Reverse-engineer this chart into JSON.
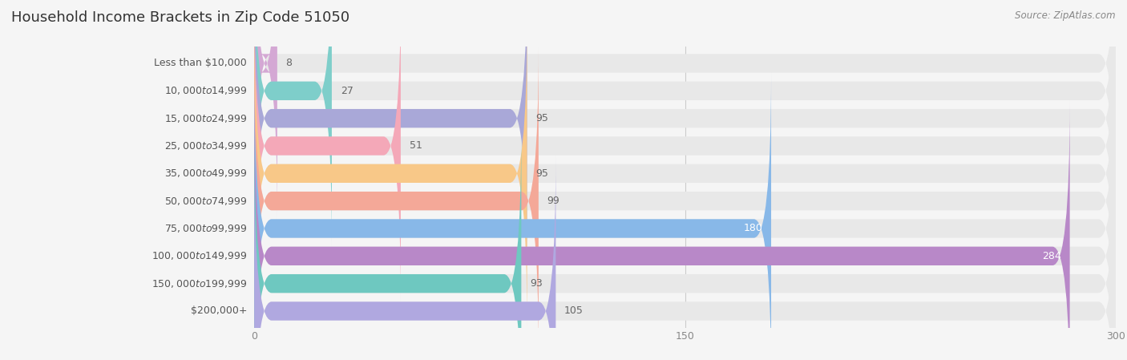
{
  "title": "Household Income Brackets in Zip Code 51050",
  "source_text": "Source: ZipAtlas.com",
  "categories": [
    "Less than $10,000",
    "$10,000 to $14,999",
    "$15,000 to $24,999",
    "$25,000 to $34,999",
    "$35,000 to $49,999",
    "$50,000 to $74,999",
    "$75,000 to $99,999",
    "$100,000 to $149,999",
    "$150,000 to $199,999",
    "$200,000+"
  ],
  "values": [
    8,
    27,
    95,
    51,
    95,
    99,
    180,
    284,
    93,
    105
  ],
  "bar_colors": [
    "#d4a8d4",
    "#7ececa",
    "#a9a8d8",
    "#f4a8b8",
    "#f8c888",
    "#f4a898",
    "#88b8e8",
    "#b888c8",
    "#6ec8c0",
    "#b0a8e0"
  ],
  "label_colors": [
    "#777777",
    "#777777",
    "#777777",
    "#777777",
    "#777777",
    "#777777",
    "#ffffff",
    "#ffffff",
    "#777777",
    "#777777"
  ],
  "background_color": "#f5f5f5",
  "bar_background_color": "#e8e8e8",
  "xlim": [
    0,
    300
  ],
  "xticks": [
    0,
    150,
    300
  ],
  "title_fontsize": 13,
  "label_fontsize": 9,
  "value_fontsize": 9,
  "tick_fontsize": 9,
  "source_fontsize": 8.5
}
